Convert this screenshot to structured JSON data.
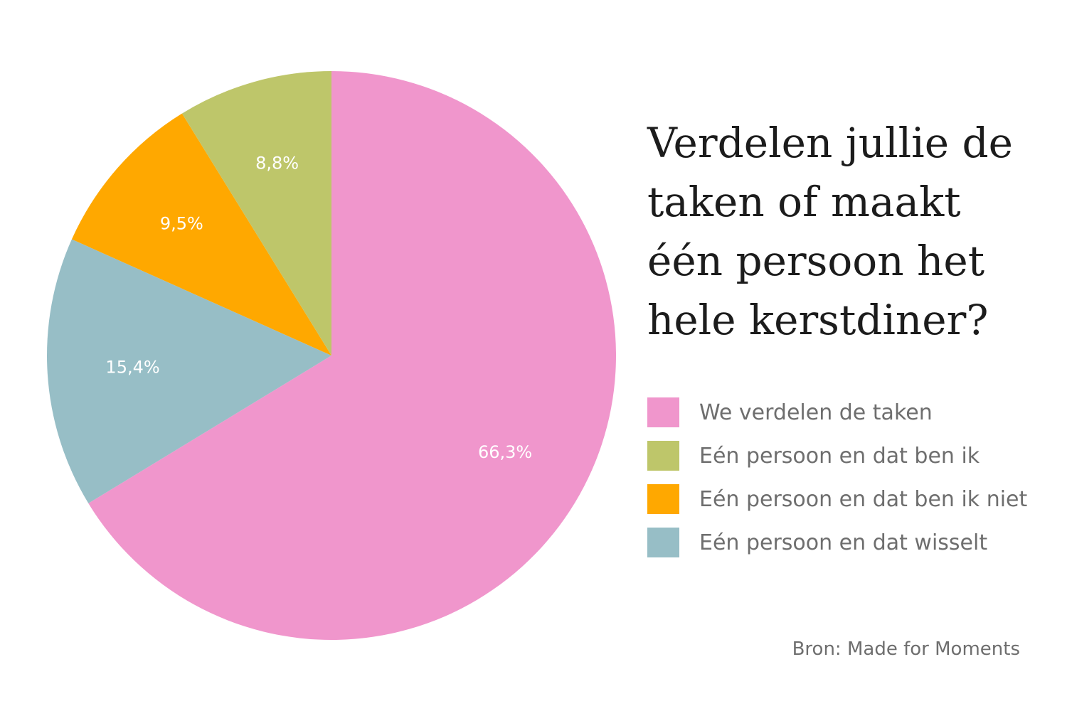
{
  "chart_data": {
    "type": "pie",
    "title": "Verdelen jullie de taken of maakt één persoon het hele kerstdiner?",
    "slices": [
      {
        "label": "We verdelen de taken",
        "value": 66.3,
        "value_label": "66,3%",
        "color": "#f096cc"
      },
      {
        "label": "Eén persoon en dat ben ik",
        "value": 8.8,
        "value_label": "8,8%",
        "color": "#bec66a"
      },
      {
        "label": "Eén persoon en dat ben ik niet",
        "value": 9.5,
        "value_label": "9,5%",
        "color": "#ffa800"
      },
      {
        "label": "Eén persoon en dat wisselt",
        "value": 15.4,
        "value_label": "15,4%",
        "color": "#97bec6"
      }
    ],
    "legend_position": "right"
  },
  "source": "Bron: Made for Moments"
}
